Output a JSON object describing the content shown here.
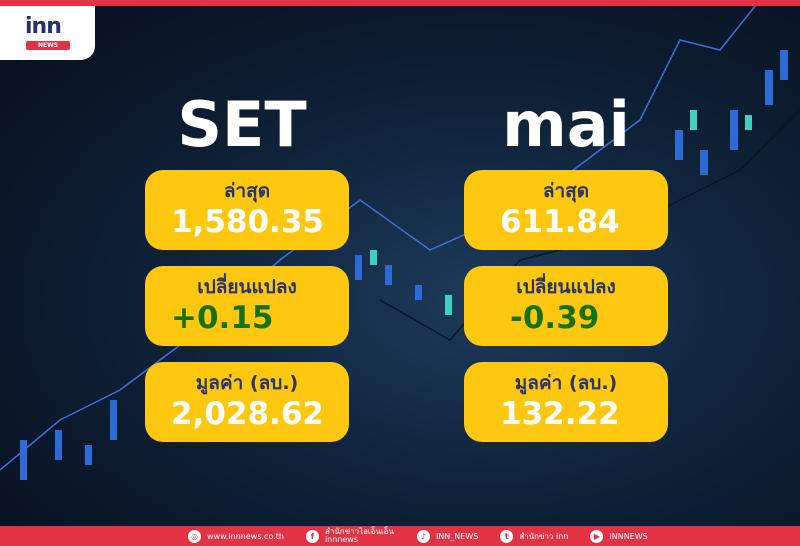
{
  "logo": {
    "text": "inn",
    "sub": "NEWS"
  },
  "set": {
    "title": "SET",
    "last_label": "ล่าสุด",
    "last": "1,580.35",
    "change_label": "เปลี่ยนแปลง",
    "change": "+0.15",
    "value_label": "มูลค่า (ลบ.)",
    "value": "2,028.62"
  },
  "mai": {
    "title": "mai",
    "last_label": "ล่าสุด",
    "last": "611.84",
    "change_label": "เปลี่ยนแปลง",
    "change": "-0.39",
    "value_label": "มูลค่า (ลบ.)",
    "value": "132.22"
  },
  "colors": {
    "accent": "#e23345",
    "card": "#fdc80f",
    "label": "#28356f",
    "change": "#177114"
  },
  "footer": [
    {
      "icon": "globe-icon",
      "text": "www.innnews.co.th"
    },
    {
      "icon": "facebook-icon",
      "text": "สำนักข่าวไอเอ็นเอ็น innnews"
    },
    {
      "icon": "tiktok-icon",
      "text": "INN_NEWS"
    },
    {
      "icon": "twitter-icon",
      "text": "สำนักข่าว inn"
    },
    {
      "icon": "youtube-icon",
      "text": "INNNEWS"
    }
  ]
}
